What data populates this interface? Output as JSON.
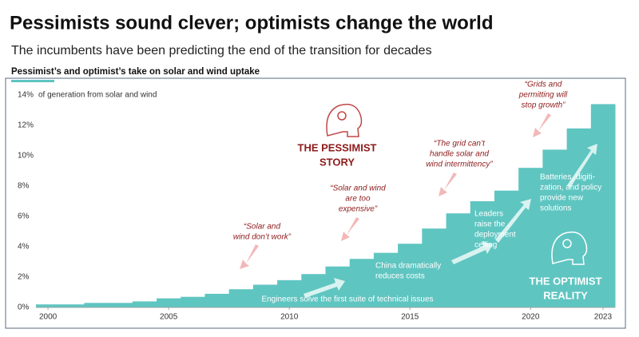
{
  "chart_data": {
    "type": "step-area",
    "title": "Pessimists sound clever; optimists change the world",
    "subtitle": "The incumbents have been predicting the end of the transition for decades",
    "chart_label": "Pessimist’s and optimist’s take on solar and wind uptake",
    "y_label": "of generation from solar and wind",
    "x": [
      2000,
      2001,
      2002,
      2003,
      2004,
      2005,
      2006,
      2007,
      2008,
      2009,
      2010,
      2011,
      2012,
      2013,
      2014,
      2015,
      2016,
      2017,
      2018,
      2019,
      2020,
      2021,
      2022,
      2023
    ],
    "values": [
      0.2,
      0.2,
      0.3,
      0.3,
      0.4,
      0.6,
      0.7,
      0.9,
      1.2,
      1.5,
      1.8,
      2.2,
      2.7,
      3.2,
      3.6,
      4.2,
      5.2,
      6.2,
      7.0,
      7.7,
      9.2,
      10.4,
      11.8,
      13.4
    ],
    "color": "#5fc5c1",
    "xlim": [
      1999.5,
      2023.5
    ],
    "xticks": [
      2000,
      2005,
      2010,
      2015,
      2020,
      2023
    ],
    "ylim": [
      0,
      14
    ],
    "yticks": [
      {
        "value": 0,
        "label": "0%"
      },
      {
        "value": 2,
        "label": "2%"
      },
      {
        "value": 4,
        "label": "4%"
      },
      {
        "value": 6,
        "label": "6%"
      },
      {
        "value": 8,
        "label": "8%"
      },
      {
        "value": 10,
        "label": "10%"
      },
      {
        "value": 12,
        "label": "12%"
      },
      {
        "value": 14,
        "label": "14%"
      }
    ],
    "annotations": [
      {
        "lines": [
          "“Solar and",
          "wind don’t work”"
        ]
      },
      {
        "lines": [
          "“Solar and wind",
          "are too",
          "expensive”"
        ]
      },
      {
        "lines": [
          "“The grid can’t",
          "handle solar and",
          "wind intermittency”"
        ]
      },
      {
        "lines": [
          "“Grids and",
          "permitting will",
          "stop growth”"
        ]
      },
      {
        "lines": [
          "THE PESSIMIST",
          "STORY"
        ]
      },
      {
        "lines": [
          "Engineers solve the first suite of technical issues"
        ]
      },
      {
        "lines": [
          "China dramatically",
          "reduces costs"
        ]
      },
      {
        "lines": [
          "Leaders",
          "raise the",
          "deployment",
          "ceiling"
        ]
      },
      {
        "lines": [
          "Batteries, digiti-",
          "zation, and policy",
          "provide new",
          "solutions"
        ]
      },
      {
        "lines": [
          "THE OPTIMIST",
          "REALITY"
        ]
      }
    ]
  }
}
